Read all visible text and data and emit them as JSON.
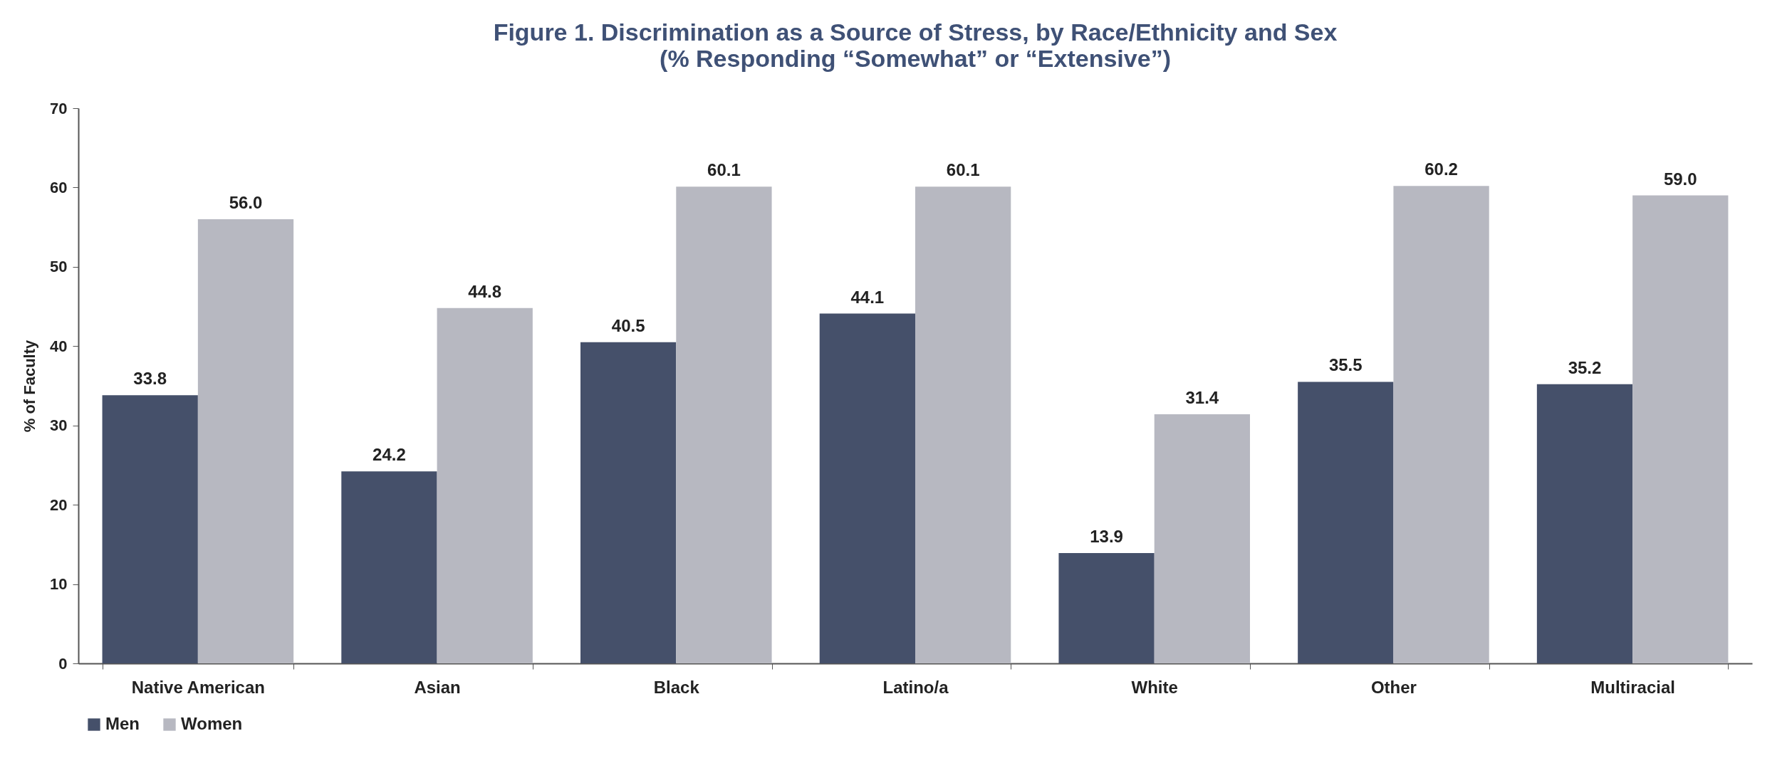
{
  "chart_data": {
    "type": "bar",
    "title": "Figure 1. Discrimination as a Source of Stress, by Race/Ethnicity and Sex",
    "subtitle": "(% Responding “Somewhat” or “Extensive”)",
    "ylabel": "% of Faculty",
    "categories": [
      "Native American",
      "Asian",
      "Black",
      "Latino/a",
      "White",
      "Other",
      "Multiracial"
    ],
    "series": [
      {
        "name": "Men",
        "color": "#45506a",
        "values": [
          33.8,
          24.2,
          40.5,
          44.1,
          13.9,
          35.5,
          35.2
        ],
        "value_labels": [
          "33.8",
          "24.2",
          "40.5",
          "44.1",
          "13.9",
          "35.5",
          "35.2"
        ]
      },
      {
        "name": "Women",
        "color": "#b7b8c1",
        "values": [
          56.0,
          44.8,
          60.1,
          60.1,
          31.4,
          60.2,
          59.0
        ],
        "value_labels": [
          "56.0",
          "44.8",
          "60.1",
          "60.1",
          "31.4",
          "60.2",
          "59.0"
        ]
      }
    ],
    "ylim": [
      0,
      70
    ],
    "yticks": [
      0,
      10,
      20,
      30,
      40,
      50,
      60,
      70
    ],
    "grid": false,
    "legend": "bottom"
  }
}
